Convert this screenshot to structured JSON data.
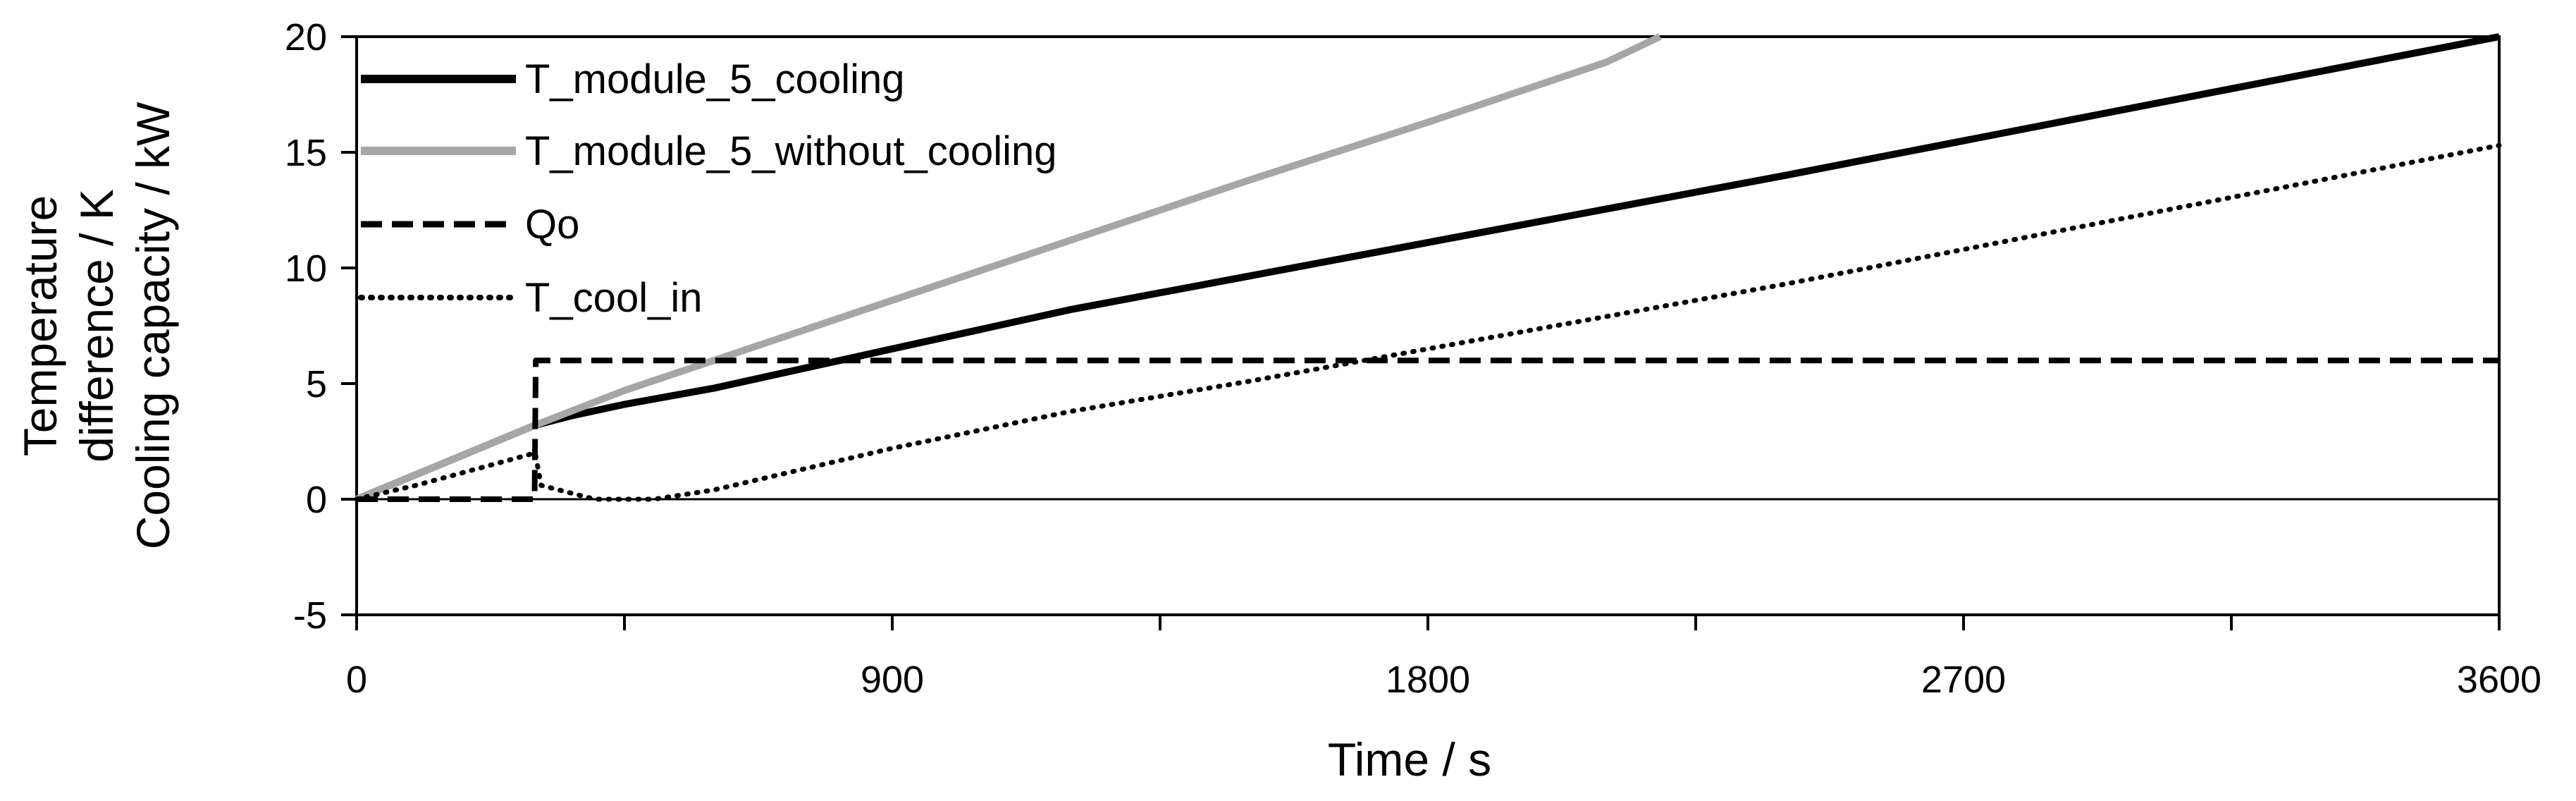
{
  "chart_data": {
    "type": "line",
    "title": "",
    "xlabel": "Time / s",
    "ylabel_lines": [
      "Temperature",
      "difference / K",
      "Cooling capacity / kW"
    ],
    "xlim": [
      0,
      3600
    ],
    "ylim": [
      -5,
      20
    ],
    "x_ticks": [
      0,
      900,
      1800,
      2700,
      3600
    ],
    "x_minor_ticks": [
      450,
      1350,
      2250,
      3150
    ],
    "y_ticks": [
      -5,
      0,
      5,
      10,
      15,
      20
    ],
    "x_tick_labels": [
      "0",
      "900",
      "1800",
      "2700",
      "3600"
    ],
    "y_tick_labels": [
      "-5",
      "0",
      "5",
      "10",
      "15",
      "20"
    ],
    "grid": false,
    "legend_position": "top-left",
    "colors": {
      "black": "#000000",
      "gray": "#a6a6a6"
    },
    "series": [
      {
        "name": "T_module_5_cooling",
        "style": "solid-thick",
        "color": "#000000",
        "x": [
          0,
          150,
          300,
          360,
          450,
          600,
          900,
          1200,
          1800,
          2400,
          3000,
          3600
        ],
        "y": [
          0,
          1.6,
          3.2,
          3.6,
          4.1,
          4.8,
          6.5,
          8.2,
          11.1,
          14.0,
          17.0,
          20.0
        ]
      },
      {
        "name": "T_module_5_without_cooling",
        "style": "solid-thick",
        "color": "#a6a6a6",
        "x": [
          0,
          150,
          300,
          450,
          600,
          900,
          1200,
          1500,
          1800,
          2100,
          2190
        ],
        "y": [
          0,
          1.6,
          3.2,
          4.7,
          6.0,
          8.6,
          11.2,
          13.8,
          16.3,
          18.9,
          20.0
        ]
      },
      {
        "name": "Qo",
        "style": "dashed",
        "color": "#000000",
        "x": [
          0,
          299,
          300,
          301,
          3600
        ],
        "y": [
          0,
          0,
          3,
          6,
          6
        ]
      },
      {
        "name": "T_cool_in",
        "style": "dotted",
        "color": "#000000",
        "x": [
          0,
          100,
          200,
          300,
          310,
          400,
          500,
          600,
          750,
          900,
          1200,
          1500,
          1800,
          2100,
          2400,
          2700,
          3000,
          3300,
          3600
        ],
        "y": [
          0,
          0.6,
          1.3,
          2.0,
          0.6,
          0,
          0,
          0.4,
          1.3,
          2.2,
          3.8,
          5.1,
          6.5,
          7.9,
          9.3,
          10.8,
          12.3,
          13.8,
          15.3
        ]
      }
    ]
  }
}
